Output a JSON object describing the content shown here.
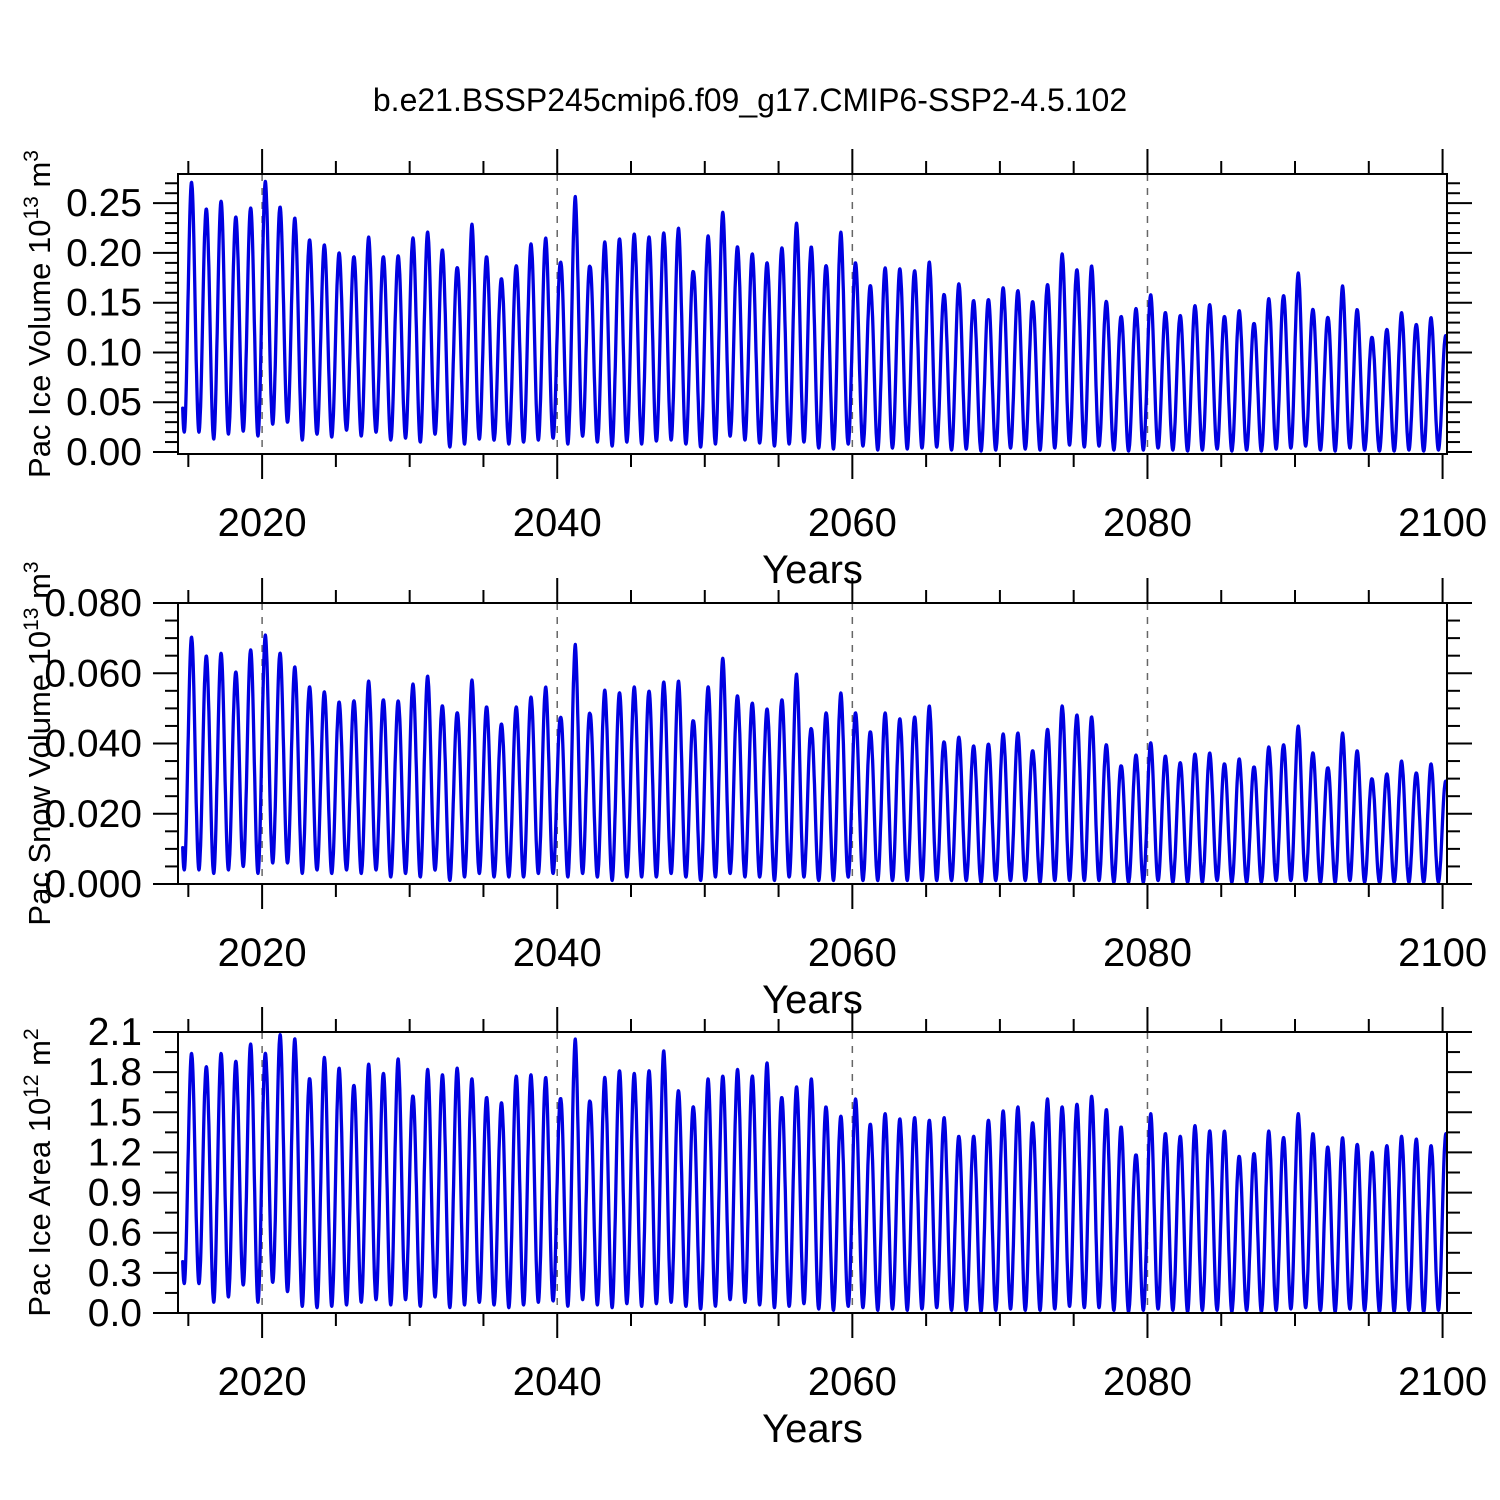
{
  "title": "b.e21.BSSP245cmip6.f09_g17.CMIP6-SSP2-4.5.102",
  "colors": {
    "line": "#0000e0",
    "frame": "#000000",
    "tick": "#000000",
    "gridline": "#666666",
    "text": "#000000",
    "background": "#ffffff"
  },
  "chart_data": [
    {
      "type": "line",
      "name": "pac-ice-volume",
      "ylabel_text": "Pac Ice Volume 10^13 m^3",
      "ylabel_parts": [
        {
          "t": "Pac Ice Volume 10"
        },
        {
          "t": "13",
          "sup": true
        },
        {
          "t": " m"
        },
        {
          "t": "3",
          "sup": true
        }
      ],
      "xlabel": "Years",
      "ylim": [
        -0.002,
        0.2793
      ],
      "y_major_values": [
        0.0,
        0.05,
        0.1,
        0.15,
        0.2,
        0.25
      ],
      "y_major_labels": [
        "0.00",
        "0.05",
        "0.10",
        "0.15",
        "0.20",
        "0.25"
      ],
      "y_minor_step": 0.01,
      "xlim": [
        2014.3,
        2100.3
      ],
      "x_major_values": [
        2020,
        2040,
        2060,
        2080,
        2100
      ],
      "x_major_labels": [
        "2020",
        "2040",
        "2060",
        "2080",
        "2100"
      ],
      "x_minor_values": [
        2015,
        2025,
        2030,
        2035,
        2045,
        2050,
        2055,
        2065,
        2070,
        2075,
        2085,
        2090,
        2095
      ],
      "x_gridlines": [
        2020,
        2040,
        2060,
        2080
      ],
      "grid": "vertical-dashed",
      "legend": "none",
      "seasonal": {
        "peak_phase": 0.22,
        "trough_phase": 0.72,
        "note": "annual cycle between annual_min and annual_max"
      },
      "years": [
        2015,
        2016,
        2017,
        2018,
        2019,
        2020,
        2021,
        2022,
        2023,
        2024,
        2025,
        2026,
        2027,
        2028,
        2029,
        2030,
        2031,
        2032,
        2033,
        2034,
        2035,
        2036,
        2037,
        2038,
        2039,
        2040,
        2041,
        2042,
        2043,
        2044,
        2045,
        2046,
        2047,
        2048,
        2049,
        2050,
        2051,
        2052,
        2053,
        2054,
        2055,
        2056,
        2057,
        2058,
        2059,
        2060,
        2061,
        2062,
        2063,
        2064,
        2065,
        2066,
        2067,
        2068,
        2069,
        2070,
        2071,
        2072,
        2073,
        2074,
        2075,
        2076,
        2077,
        2078,
        2079,
        2080,
        2081,
        2082,
        2083,
        2084,
        2085,
        2086,
        2087,
        2088,
        2089,
        2090,
        2091,
        2092,
        2093,
        2094,
        2095,
        2096,
        2097,
        2098,
        2099,
        2100
      ],
      "annual_max": [
        0.271,
        0.244,
        0.252,
        0.236,
        0.245,
        0.272,
        0.246,
        0.235,
        0.213,
        0.208,
        0.2,
        0.196,
        0.216,
        0.196,
        0.197,
        0.215,
        0.221,
        0.203,
        0.185,
        0.229,
        0.196,
        0.174,
        0.187,
        0.209,
        0.215,
        0.19,
        0.257,
        0.186,
        0.211,
        0.214,
        0.219,
        0.216,
        0.22,
        0.225,
        0.181,
        0.217,
        0.241,
        0.206,
        0.199,
        0.19,
        0.205,
        0.23,
        0.206,
        0.187,
        0.221,
        0.19,
        0.167,
        0.185,
        0.184,
        0.182,
        0.191,
        0.158,
        0.169,
        0.152,
        0.153,
        0.165,
        0.162,
        0.151,
        0.168,
        0.199,
        0.183,
        0.187,
        0.151,
        0.136,
        0.144,
        0.158,
        0.14,
        0.137,
        0.147,
        0.148,
        0.136,
        0.142,
        0.129,
        0.154,
        0.157,
        0.18,
        0.143,
        0.135,
        0.167,
        0.143,
        0.115,
        0.123,
        0.14,
        0.128,
        0.135,
        0.117
      ],
      "annual_min": [
        0.02,
        0.013,
        0.018,
        0.021,
        0.016,
        0.028,
        0.03,
        0.012,
        0.018,
        0.015,
        0.022,
        0.016,
        0.02,
        0.012,
        0.014,
        0.01,
        0.018,
        0.005,
        0.008,
        0.013,
        0.012,
        0.008,
        0.01,
        0.012,
        0.014,
        0.008,
        0.016,
        0.01,
        0.006,
        0.01,
        0.008,
        0.011,
        0.012,
        0.008,
        0.005,
        0.008,
        0.016,
        0.012,
        0.009,
        0.006,
        0.008,
        0.01,
        0.004,
        0.003,
        0.008,
        0.006,
        0.002,
        0.004,
        0.003,
        0.004,
        0.005,
        0.002,
        0.003,
        0.001,
        0.002,
        0.004,
        0.003,
        0.002,
        0.004,
        0.007,
        0.005,
        0.006,
        0.002,
        0.001,
        0.002,
        0.004,
        0.002,
        0.001,
        0.002,
        0.003,
        0.001,
        0.002,
        0.001,
        0.003,
        0.004,
        0.006,
        0.002,
        0.001,
        0.004,
        0.002,
        0.001,
        0.001,
        0.002,
        0.001,
        0.002,
        0.001
      ]
    },
    {
      "type": "line",
      "name": "pac-snow-volume",
      "ylabel_text": "Pac Snow Volume 10^13 m^3",
      "ylabel_parts": [
        {
          "t": "Pac Snow Volume 10"
        },
        {
          "t": "13",
          "sup": true
        },
        {
          "t": " m"
        },
        {
          "t": "3",
          "sup": true
        }
      ],
      "xlabel": "Years",
      "ylim": [
        0,
        0.08
      ],
      "y_major_values": [
        0.0,
        0.02,
        0.04,
        0.06,
        0.08
      ],
      "y_major_labels": [
        "0.000",
        "0.020",
        "0.040",
        "0.060",
        "0.080"
      ],
      "y_minor_step": 0.005,
      "xlim": [
        2014.3,
        2100.3
      ],
      "x_major_values": [
        2020,
        2040,
        2060,
        2080,
        2100
      ],
      "x_major_labels": [
        "2020",
        "2040",
        "2060",
        "2080",
        "2100"
      ],
      "x_minor_values": [
        2015,
        2025,
        2030,
        2035,
        2045,
        2050,
        2055,
        2065,
        2070,
        2075,
        2085,
        2090,
        2095
      ],
      "x_gridlines": [
        2020,
        2040,
        2060,
        2080
      ],
      "grid": "vertical-dashed",
      "legend": "none",
      "seasonal": {
        "peak_phase": 0.22,
        "trough_phase": 0.72,
        "note": "annual cycle between annual_min and annual_max"
      },
      "years": [
        2015,
        2016,
        2017,
        2018,
        2019,
        2020,
        2021,
        2022,
        2023,
        2024,
        2025,
        2026,
        2027,
        2028,
        2029,
        2030,
        2031,
        2032,
        2033,
        2034,
        2035,
        2036,
        2037,
        2038,
        2039,
        2040,
        2041,
        2042,
        2043,
        2044,
        2045,
        2046,
        2047,
        2048,
        2049,
        2050,
        2051,
        2052,
        2053,
        2054,
        2055,
        2056,
        2057,
        2058,
        2059,
        2060,
        2061,
        2062,
        2063,
        2064,
        2065,
        2066,
        2067,
        2068,
        2069,
        2070,
        2071,
        2072,
        2073,
        2074,
        2075,
        2076,
        2077,
        2078,
        2079,
        2080,
        2081,
        2082,
        2083,
        2084,
        2085,
        2086,
        2087,
        2088,
        2089,
        2090,
        2091,
        2092,
        2093,
        2094,
        2095,
        2096,
        2097,
        2098,
        2099,
        2100
      ],
      "annual_max": [
        0.0703,
        0.0649,
        0.0657,
        0.0603,
        0.0666,
        0.0709,
        0.0657,
        0.0618,
        0.0561,
        0.0547,
        0.0518,
        0.0521,
        0.0578,
        0.0524,
        0.0521,
        0.0569,
        0.0592,
        0.0507,
        0.0487,
        0.0581,
        0.0504,
        0.0455,
        0.0504,
        0.0532,
        0.0561,
        0.0472,
        0.0683,
        0.0484,
        0.0552,
        0.0544,
        0.0561,
        0.0549,
        0.0575,
        0.0578,
        0.0464,
        0.0561,
        0.0643,
        0.0535,
        0.0515,
        0.0498,
        0.0524,
        0.0598,
        0.0441,
        0.0487,
        0.0544,
        0.0487,
        0.0433,
        0.0487,
        0.047,
        0.0475,
        0.0507,
        0.0404,
        0.0418,
        0.0393,
        0.0398,
        0.0427,
        0.043,
        0.0379,
        0.044,
        0.0507,
        0.0481,
        0.0476,
        0.0396,
        0.0336,
        0.0367,
        0.0402,
        0.0364,
        0.0345,
        0.037,
        0.0373,
        0.0342,
        0.0356,
        0.0333,
        0.039,
        0.0396,
        0.045,
        0.0373,
        0.033,
        0.043,
        0.0379,
        0.0299,
        0.0313,
        0.035,
        0.0316,
        0.0342,
        0.0293
      ],
      "annual_min": [
        0.004,
        0.003,
        0.004,
        0.005,
        0.003,
        0.006,
        0.006,
        0.003,
        0.004,
        0.003,
        0.004,
        0.003,
        0.004,
        0.002,
        0.003,
        0.002,
        0.004,
        0.001,
        0.002,
        0.003,
        0.002,
        0.002,
        0.002,
        0.003,
        0.003,
        0.002,
        0.003,
        0.002,
        0.001,
        0.002,
        0.002,
        0.002,
        0.003,
        0.002,
        0.001,
        0.002,
        0.003,
        0.002,
        0.002,
        0.001,
        0.002,
        0.002,
        0.001,
        0.001,
        0.002,
        0.001,
        0.001,
        0.001,
        0.001,
        0.001,
        0.001,
        0.001,
        0.001,
        0.0005,
        0.001,
        0.001,
        0.001,
        0.0005,
        0.001,
        0.001,
        0.001,
        0.001,
        0.0005,
        0.0005,
        0.0005,
        0.001,
        0.0005,
        0.0005,
        0.0005,
        0.001,
        0.0005,
        0.0005,
        0.0005,
        0.001,
        0.001,
        0.001,
        0.0005,
        0.0005,
        0.001,
        0.0005,
        0.0005,
        0.0005,
        0.0005,
        0.0005,
        0.0005,
        0.0005
      ]
    },
    {
      "type": "line",
      "name": "pac-ice-area",
      "ylabel_text": "Pac Ice Area 10^12 m^2",
      "ylabel_parts": [
        {
          "t": "Pac Ice Area 10"
        },
        {
          "t": "12",
          "sup": true
        },
        {
          "t": " m"
        },
        {
          "t": "2",
          "sup": true
        }
      ],
      "xlabel": "Years",
      "ylim": [
        0,
        2.1
      ],
      "y_major_values": [
        0.0,
        0.3,
        0.6,
        0.9,
        1.2,
        1.5,
        1.8,
        2.1
      ],
      "y_major_labels": [
        "0.0",
        "0.3",
        "0.6",
        "0.9",
        "1.2",
        "1.5",
        "1.8",
        "2.1"
      ],
      "y_minor_step": 0.15,
      "xlim": [
        2014.3,
        2100.3
      ],
      "x_major_values": [
        2020,
        2040,
        2060,
        2080,
        2100
      ],
      "x_major_labels": [
        "2020",
        "2040",
        "2060",
        "2080",
        "2100"
      ],
      "x_minor_values": [
        2015,
        2025,
        2030,
        2035,
        2045,
        2050,
        2055,
        2065,
        2070,
        2075,
        2085,
        2090,
        2095
      ],
      "x_gridlines": [
        2020,
        2040,
        2060,
        2080
      ],
      "grid": "vertical-dashed",
      "legend": "none",
      "seasonal": {
        "peak_phase": 0.22,
        "trough_phase": 0.72,
        "note": "annual cycle between annual_min and annual_max"
      },
      "years": [
        2015,
        2016,
        2017,
        2018,
        2019,
        2020,
        2021,
        2022,
        2023,
        2024,
        2025,
        2026,
        2027,
        2028,
        2029,
        2030,
        2031,
        2032,
        2033,
        2034,
        2035,
        2036,
        2037,
        2038,
        2039,
        2040,
        2041,
        2042,
        2043,
        2044,
        2045,
        2046,
        2047,
        2048,
        2049,
        2050,
        2051,
        2052,
        2053,
        2054,
        2055,
        2056,
        2057,
        2058,
        2059,
        2060,
        2061,
        2062,
        2063,
        2064,
        2065,
        2066,
        2067,
        2068,
        2069,
        2070,
        2071,
        2072,
        2073,
        2074,
        2075,
        2076,
        2077,
        2078,
        2079,
        2080,
        2081,
        2082,
        2083,
        2084,
        2085,
        2086,
        2087,
        2088,
        2089,
        2090,
        2091,
        2092,
        2093,
        2094,
        2095,
        2096,
        2097,
        2098,
        2099,
        2100
      ],
      "annual_max": [
        1.94,
        1.84,
        1.94,
        1.88,
        2.01,
        1.94,
        2.08,
        2.05,
        1.75,
        1.91,
        1.83,
        1.7,
        1.86,
        1.79,
        1.9,
        1.62,
        1.82,
        1.78,
        1.83,
        1.75,
        1.61,
        1.57,
        1.77,
        1.78,
        1.76,
        1.6,
        2.05,
        1.58,
        1.76,
        1.81,
        1.79,
        1.81,
        1.96,
        1.66,
        1.54,
        1.75,
        1.77,
        1.82,
        1.77,
        1.87,
        1.61,
        1.69,
        1.75,
        1.54,
        1.47,
        1.6,
        1.41,
        1.49,
        1.45,
        1.46,
        1.44,
        1.46,
        1.32,
        1.32,
        1.44,
        1.51,
        1.54,
        1.42,
        1.6,
        1.54,
        1.56,
        1.62,
        1.52,
        1.39,
        1.18,
        1.49,
        1.34,
        1.32,
        1.4,
        1.36,
        1.36,
        1.17,
        1.19,
        1.36,
        1.31,
        1.49,
        1.34,
        1.24,
        1.31,
        1.26,
        1.2,
        1.25,
        1.32,
        1.3,
        1.25,
        1.34
      ],
      "annual_min": [
        0.22,
        0.08,
        0.12,
        0.21,
        0.08,
        0.23,
        0.16,
        0.05,
        0.04,
        0.05,
        0.06,
        0.08,
        0.1,
        0.06,
        0.1,
        0.05,
        0.12,
        0.04,
        0.06,
        0.08,
        0.06,
        0.04,
        0.06,
        0.08,
        0.09,
        0.05,
        0.1,
        0.06,
        0.04,
        0.07,
        0.05,
        0.07,
        0.08,
        0.05,
        0.03,
        0.05,
        0.1,
        0.08,
        0.06,
        0.04,
        0.05,
        0.07,
        0.03,
        0.02,
        0.05,
        0.04,
        0.02,
        0.03,
        0.02,
        0.03,
        0.04,
        0.02,
        0.02,
        0.01,
        0.02,
        0.03,
        0.02,
        0.02,
        0.03,
        0.05,
        0.04,
        0.04,
        0.02,
        0.01,
        0.02,
        0.03,
        0.02,
        0.01,
        0.02,
        0.02,
        0.01,
        0.02,
        0.01,
        0.02,
        0.03,
        0.04,
        0.02,
        0.01,
        0.03,
        0.02,
        0.01,
        0.01,
        0.02,
        0.01,
        0.02,
        0.01
      ]
    }
  ]
}
